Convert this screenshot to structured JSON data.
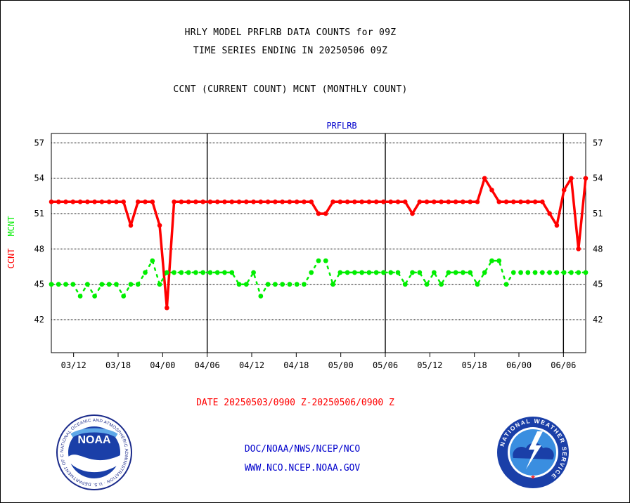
{
  "header": {
    "title_line1": "HRLY MODEL PRFLRB DATA COUNTS for 09Z",
    "title_line2": "TIME SERIES ENDING IN 20250506 09Z",
    "subtitle": "CCNT (CURRENT COUNT) MCNT (MONTHLY COUNT)"
  },
  "footer": {
    "date_range": "DATE 20250503/0900 Z-20250506/0900 Z",
    "org_path": "DOC/NOAA/NWS/NCEP/NCO",
    "website": "WWW.NCO.NCEP.NOAA.GOV"
  },
  "logos": {
    "noaa_text": "NOAA",
    "noaa_ring_text": "NATIONAL OCEANIC AND ATMOSPHERIC ADMINISTRATION · U.S. DEPARTMENT OF COMMERCE",
    "nws_ring_text": "NATIONAL WEATHER SERVICE"
  },
  "chart_data": {
    "type": "line",
    "title": "PRFLRB",
    "ylabel_series": [
      "CCNT",
      "MCNT"
    ],
    "y_ticks": [
      42,
      45,
      48,
      51,
      54,
      57
    ],
    "ylim": [
      39.2,
      57.8
    ],
    "x_tick_labels": [
      "03/12",
      "03/18",
      "04/00",
      "04/06",
      "04/12",
      "04/18",
      "05/00",
      "05/06",
      "05/12",
      "05/18",
      "06/00",
      "06/06"
    ],
    "x_tick_steps": [
      3,
      9,
      15,
      21,
      27,
      33,
      39,
      45,
      51,
      57,
      63,
      69
    ],
    "day_boundaries": [
      21,
      45,
      69
    ],
    "x_range_steps": [
      0,
      72
    ],
    "grid": "horizontal dotted",
    "colors": {
      "ccnt": "#ff0000",
      "mcnt": "#00ee00",
      "title": "#0000cc"
    },
    "series": [
      {
        "name": "CCNT",
        "color": "#ff0000",
        "values": [
          52,
          52,
          52,
          52,
          52,
          52,
          52,
          52,
          52,
          52,
          52,
          50,
          52,
          52,
          52,
          50,
          43,
          52,
          52,
          52,
          52,
          52,
          52,
          52,
          52,
          52,
          52,
          52,
          52,
          52,
          52,
          52,
          52,
          52,
          52,
          52,
          52,
          51,
          51,
          52,
          52,
          52,
          52,
          52,
          52,
          52,
          52,
          52,
          52,
          52,
          51,
          52,
          52,
          52,
          52,
          52,
          52,
          52,
          52,
          52,
          54,
          53,
          52,
          52,
          52,
          52,
          52,
          52,
          52,
          51,
          50,
          53,
          54,
          48,
          54
        ]
      },
      {
        "name": "MCNT",
        "color": "#00ee00",
        "values": [
          45,
          45,
          45,
          45,
          44,
          45,
          44,
          45,
          45,
          45,
          44,
          45,
          45,
          46,
          47,
          45,
          46,
          46,
          46,
          46,
          46,
          46,
          46,
          46,
          46,
          46,
          45,
          45,
          46,
          44,
          45,
          45,
          45,
          45,
          45,
          45,
          46,
          47,
          47,
          45,
          46,
          46,
          46,
          46,
          46,
          46,
          46,
          46,
          46,
          45,
          46,
          46,
          45,
          46,
          45,
          46,
          46,
          46,
          46,
          45,
          46,
          47,
          47,
          45,
          46,
          46,
          46,
          46,
          46,
          46,
          46,
          46,
          46,
          46,
          46
        ]
      }
    ]
  }
}
